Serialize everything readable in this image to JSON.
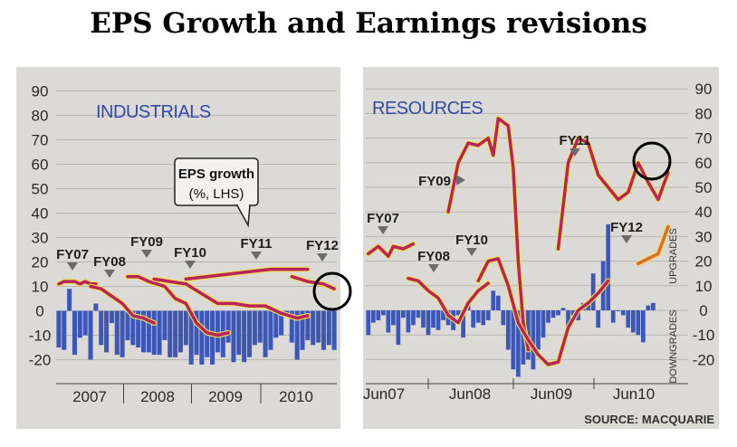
{
  "title": "EPS Growth and Earnings revisions",
  "source": "SOURCE: MACQUARIE",
  "colors": {
    "bar": "#3c57b8",
    "eps": "#b8245a",
    "eps_glow": "#f2e24a",
    "resources_eps_late": "#d96a3a",
    "panel_bg": "#dcdad6",
    "label_blue": "#2f4aa8"
  },
  "chart_data": [
    {
      "type": "bar+line",
      "title": "INDUSTRIALS",
      "annotation": "EPS growth (%, LHS)",
      "ylim": [
        -25,
        92
      ],
      "y_ticks": [
        90,
        80,
        70,
        60,
        50,
        40,
        30,
        20,
        10,
        0,
        -10,
        -20
      ],
      "x_ticks": [
        "2007",
        "2008",
        "2009",
        "2010"
      ],
      "fy_labels": [
        "FY07",
        "FY08",
        "FY09",
        "FY10",
        "FY11",
        "FY12"
      ],
      "revisions": [
        -15,
        -16,
        9,
        -18,
        -11,
        -10,
        -20,
        3,
        -14,
        -17,
        -5,
        -18,
        -19,
        -12,
        -14,
        -15,
        -17,
        -17,
        -18,
        -18,
        -12,
        -19,
        -19,
        -17,
        -14,
        -22,
        -18,
        -22,
        -19,
        -22,
        -17,
        -19,
        -13,
        -21,
        -18,
        -21,
        -19,
        -14,
        -13,
        -19,
        -16,
        -11,
        -10,
        -2,
        -13,
        -20,
        -16,
        -12,
        -14,
        -13,
        -16,
        -14,
        -16
      ],
      "eps_series": [
        {
          "fy": "FY07",
          "x": [
            0,
            1,
            2,
            3,
            4,
            5,
            6,
            7
          ],
          "y": [
            11,
            12,
            12,
            12,
            11,
            12,
            11,
            11
          ]
        },
        {
          "fy": "FY08",
          "x": [
            6,
            8,
            10,
            12,
            14,
            16,
            18
          ],
          "y": [
            10,
            9,
            6,
            3,
            -2,
            -3,
            -5
          ]
        },
        {
          "fy": "FY09",
          "x": [
            13,
            15,
            17,
            20,
            22,
            24,
            26,
            28,
            30,
            32
          ],
          "y": [
            14,
            14,
            12,
            10,
            5,
            3,
            -5,
            -9,
            -10,
            -9
          ]
        },
        {
          "fy": "FY10",
          "x": [
            18,
            21,
            24,
            27,
            30,
            33,
            36,
            39,
            42,
            45,
            47
          ],
          "y": [
            13,
            12,
            11,
            7,
            3,
            3,
            2,
            2,
            -1,
            -3,
            -2
          ]
        },
        {
          "fy": "FY11",
          "x": [
            24,
            28,
            32,
            36,
            40,
            44,
            47
          ],
          "y": [
            13,
            14,
            15,
            16,
            17,
            17,
            17
          ]
        },
        {
          "fy": "FY12",
          "x": [
            44,
            47,
            50,
            52
          ],
          "y": [
            14,
            12,
            11,
            9
          ]
        }
      ]
    },
    {
      "type": "bar+line",
      "title": "RESOURCES",
      "y_right_label_up": "UPGRADES",
      "y_right_label_down": "DOWNGRADES",
      "ylim": [
        -25,
        92
      ],
      "y_ticks": [
        90,
        80,
        70,
        60,
        50,
        40,
        30,
        20,
        10,
        0,
        -10,
        -20
      ],
      "x_ticks": [
        "Jun07",
        "Jun08",
        "Jun09",
        "Jun10"
      ],
      "fy_labels": [
        "FY07",
        "FY08",
        "FY09",
        "FY10",
        "FY11",
        "FY12"
      ],
      "revisions": [
        -10,
        -5,
        -4,
        -2,
        -9,
        -6,
        -14,
        -3,
        -9,
        -6,
        -3,
        -7,
        -10,
        -7,
        -8,
        -4,
        -6,
        -8,
        -2,
        -11,
        3,
        -7,
        -5,
        -6,
        -4,
        8,
        6,
        -6,
        -16,
        -24,
        -27,
        -22,
        -20,
        -24,
        -16,
        -11,
        -5,
        -3,
        -2,
        1,
        -7,
        -2,
        -4,
        3,
        3,
        15,
        -7,
        20,
        35,
        -5,
        0,
        -2,
        -7,
        -9,
        -10,
        -13,
        2,
        3
      ],
      "eps_series": [
        {
          "fy": "FY07",
          "x": [
            0,
            2,
            4,
            5,
            7,
            9
          ],
          "y": [
            23,
            26,
            22,
            26,
            25,
            27
          ]
        },
        {
          "fy": "FY08",
          "x": [
            8,
            10,
            12,
            14,
            16,
            18,
            20,
            22,
            24
          ],
          "y": [
            13,
            12,
            8,
            5,
            -2,
            -5,
            3,
            8,
            11
          ]
        },
        {
          "fy": "FY09",
          "x": [
            16,
            18,
            20,
            22,
            24,
            25,
            26,
            28,
            29,
            30,
            31,
            32
          ],
          "y": [
            40,
            60,
            68,
            67,
            70,
            63,
            78,
            75,
            58,
            20,
            -5,
            -16
          ]
        },
        {
          "fy": "FY10",
          "x": [
            22,
            24,
            26,
            28,
            30,
            32,
            34,
            36,
            38,
            40,
            42,
            44,
            46,
            48
          ],
          "y": [
            12,
            20,
            21,
            10,
            -5,
            -12,
            -18,
            -22,
            -21,
            -7,
            0,
            3,
            7,
            12
          ]
        },
        {
          "fy": "FY11",
          "x": [
            38,
            40,
            42,
            44,
            46,
            48,
            50,
            52,
            54,
            56,
            58,
            60
          ],
          "y": [
            25,
            60,
            70,
            68,
            55,
            50,
            45,
            48,
            60,
            52,
            45,
            56
          ]
        },
        {
          "fy": "FY12",
          "x": [
            54,
            56,
            58,
            60
          ],
          "y": [
            19,
            21,
            23,
            34
          ]
        }
      ]
    }
  ]
}
